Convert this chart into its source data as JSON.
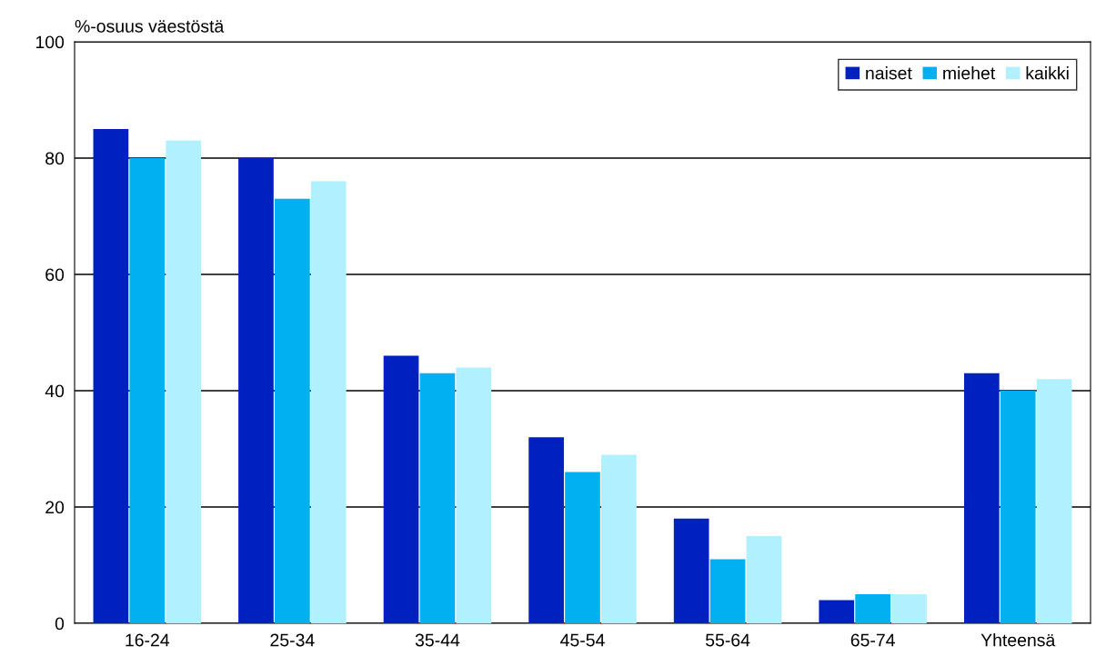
{
  "chart_data": {
    "type": "bar",
    "ylabel": "%-osuus väestöstä",
    "categories": [
      "16-24",
      "25-34",
      "35-44",
      "45-54",
      "55-64",
      "65-74",
      "Yhteensä"
    ],
    "series": [
      {
        "name": "naiset",
        "color": "#0020c0",
        "values": [
          85,
          80,
          46,
          32,
          18,
          4,
          43
        ]
      },
      {
        "name": "miehet",
        "color": "#00b0f0",
        "values": [
          80,
          73,
          43,
          26,
          11,
          5,
          40
        ]
      },
      {
        "name": "kaikki",
        "color": "#b0f0ff",
        "values": [
          83,
          76,
          44,
          29,
          15,
          5,
          42
        ]
      }
    ],
    "ylim": [
      0,
      100
    ],
    "yticks": [
      0,
      20,
      40,
      60,
      80,
      100
    ],
    "grid": "y",
    "legend": "top right"
  }
}
